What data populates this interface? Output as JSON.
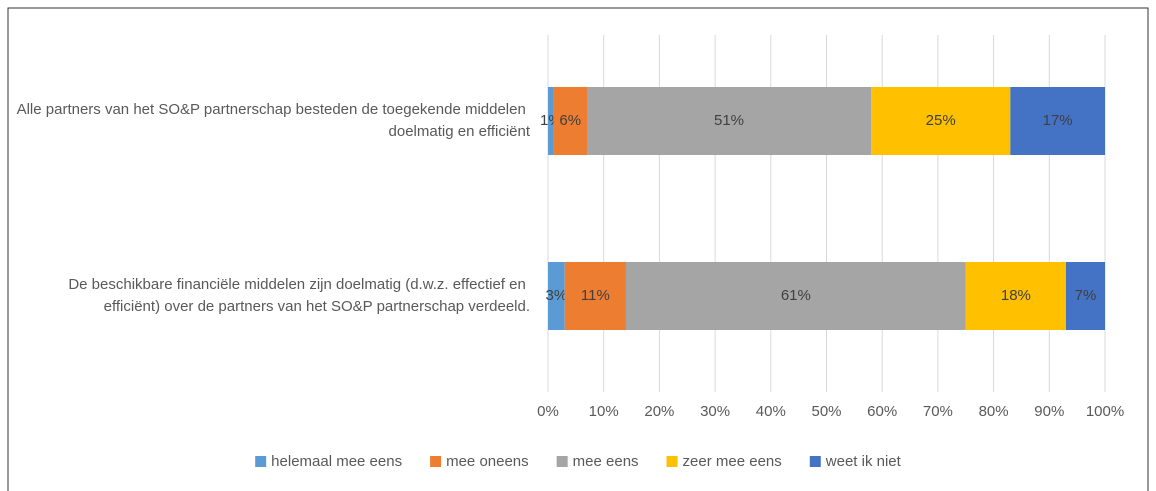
{
  "chart_data": {
    "type": "stacked-barh",
    "categories": [
      "Alle partners van het SO&P partnerschap besteden de toegekende middelen doelmatig en efficiënt",
      "De beschikbare financiële middelen zijn doelmatig (d.w.z. effectief en efficiënt) over de partners van het SO&P partnerschap verdeeld."
    ],
    "series": [
      {
        "name": "helemaal mee eens",
        "color": "#5b9bd5",
        "values": [
          1,
          3
        ],
        "value_labels": [
          "1%",
          "3%"
        ]
      },
      {
        "name": "mee oneens",
        "color": "#ed7d31",
        "values": [
          6,
          11
        ],
        "value_labels": [
          "6%",
          "11%"
        ]
      },
      {
        "name": "mee eens",
        "color": "#a5a5a5",
        "values": [
          51,
          61
        ],
        "value_labels": [
          "51%",
          "61%"
        ]
      },
      {
        "name": "zeer mee eens",
        "color": "#ffc000",
        "values": [
          25,
          18
        ],
        "value_labels": [
          "25%",
          "18%"
        ]
      },
      {
        "name": "weet ik niet",
        "color": "#4472c4",
        "values": [
          17,
          7
        ],
        "value_labels": [
          "17%",
          "7%"
        ]
      }
    ],
    "xlim": [
      0,
      100
    ],
    "xticks": [
      {
        "value": 0,
        "label": "0%"
      },
      {
        "value": 10,
        "label": "10%"
      },
      {
        "value": 20,
        "label": "20%"
      },
      {
        "value": 30,
        "label": "30%"
      },
      {
        "value": 40,
        "label": "40%"
      },
      {
        "value": 50,
        "label": "50%"
      },
      {
        "value": 60,
        "label": "60%"
      },
      {
        "value": 70,
        "label": "70%"
      },
      {
        "value": 80,
        "label": "80%"
      },
      {
        "value": 90,
        "label": "90%"
      },
      {
        "value": 100,
        "label": "100%"
      }
    ],
    "grid": true,
    "legend": "bottom"
  }
}
